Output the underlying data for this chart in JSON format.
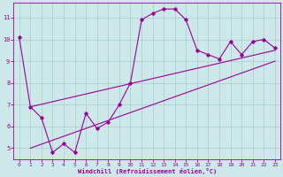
{
  "xlabel": "Windchill (Refroidissement éolien,°C)",
  "bg_color": "#cce8e8",
  "line_color": "#990099",
  "grid_color": "#aacccc",
  "xlim": [
    -0.5,
    23.5
  ],
  "ylim": [
    4.5,
    11.7
  ],
  "xticks": [
    0,
    1,
    2,
    3,
    4,
    5,
    6,
    7,
    8,
    9,
    10,
    11,
    12,
    13,
    14,
    15,
    16,
    17,
    18,
    19,
    20,
    21,
    22,
    23
  ],
  "yticks": [
    5,
    6,
    7,
    8,
    9,
    10,
    11
  ],
  "main_x": [
    0,
    1,
    2,
    3,
    4,
    5,
    6,
    7,
    8,
    9,
    10,
    11,
    12,
    13,
    14,
    15,
    16,
    17,
    18,
    19,
    20,
    21,
    22,
    23
  ],
  "main_y": [
    10.1,
    6.9,
    6.4,
    4.8,
    5.2,
    4.8,
    6.6,
    5.9,
    6.2,
    7.0,
    8.0,
    10.9,
    11.2,
    11.4,
    11.4,
    10.9,
    9.5,
    9.3,
    9.1,
    9.9,
    9.3,
    9.9,
    10.0,
    9.6
  ],
  "trend1_x": [
    1,
    23
  ],
  "trend1_y": [
    6.9,
    9.5
  ],
  "trend2_x": [
    1,
    23
  ],
  "trend2_y": [
    5.0,
    9.0
  ]
}
